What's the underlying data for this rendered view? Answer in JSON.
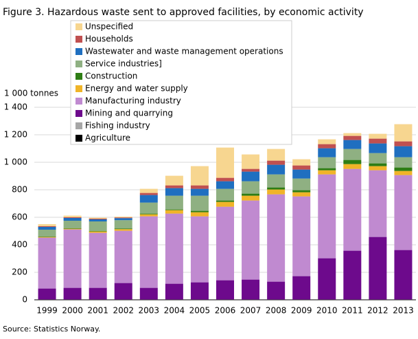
{
  "chart_data": {
    "type": "stacked-bar",
    "title": "Figure 3. Hazardous waste sent to approved facilities, by economic activity",
    "y_label": "1 000 tonnes",
    "source": "Source: Statistics Norway.",
    "categories": [
      "1999",
      "2000",
      "2001",
      "2002",
      "2003",
      "2004",
      "2005",
      "2006",
      "2007",
      "2008",
      "2009",
      "2010",
      "2011",
      "2012",
      "2013"
    ],
    "ylim": [
      0,
      1400
    ],
    "yticks": [
      0,
      200,
      400,
      600,
      800,
      {
        "value": 1000,
        "label": "1 000"
      },
      {
        "value": 1200,
        "label": "1 200"
      },
      {
        "value": 1400,
        "label": "1 400"
      }
    ],
    "grid": true,
    "series": [
      {
        "name": "Agriculture",
        "color": "#000000",
        "values": [
          1,
          1,
          1,
          1,
          1,
          1,
          1,
          1,
          1,
          1,
          1,
          1,
          1,
          1,
          1
        ]
      },
      {
        "name": "Fishing industry",
        "color": "#a6a6a6",
        "values": [
          1,
          1,
          1,
          1,
          1,
          1,
          1,
          1,
          1,
          1,
          1,
          1,
          1,
          1,
          1
        ]
      },
      {
        "name": "Mining and quarrying",
        "color": "#6d0a8c",
        "values": [
          80,
          85,
          85,
          120,
          85,
          115,
          125,
          140,
          145,
          130,
          170,
          300,
          355,
          455,
          360
        ]
      },
      {
        "name": "Manufacturing industry",
        "color": "#c08ad0",
        "values": [
          370,
          425,
          400,
          380,
          520,
          510,
          480,
          535,
          575,
          635,
          580,
          610,
          595,
          485,
          545
        ]
      },
      {
        "name": "Energy and water supply",
        "color": "#f0b428",
        "values": [
          5,
          5,
          10,
          12,
          15,
          25,
          30,
          35,
          35,
          35,
          30,
          30,
          35,
          30,
          30
        ]
      },
      {
        "name": "Construction",
        "color": "#2e7d14",
        "values": [
          3,
          3,
          3,
          5,
          5,
          5,
          10,
          10,
          15,
          15,
          15,
          15,
          30,
          20,
          25
        ]
      },
      {
        "name": "Service industries]",
        "color": "#8fb082",
        "values": [
          50,
          55,
          70,
          60,
          80,
          100,
          110,
          85,
          90,
          95,
          85,
          80,
          80,
          75,
          75
        ]
      },
      {
        "name": "Wastewater and waste management operations",
        "color": "#1f6fc0",
        "values": [
          20,
          20,
          15,
          15,
          55,
          55,
          50,
          55,
          70,
          70,
          65,
          65,
          65,
          70,
          80
        ]
      },
      {
        "name": "Households",
        "color": "#c05050",
        "values": [
          5,
          5,
          5,
          5,
          15,
          20,
          25,
          25,
          20,
          30,
          30,
          30,
          30,
          35,
          35
        ]
      },
      {
        "name": "Unspecified",
        "color": "#f7d690",
        "values": [
          15,
          12,
          7,
          6,
          30,
          70,
          140,
          220,
          105,
          85,
          45,
          35,
          20,
          35,
          125
        ]
      }
    ]
  }
}
